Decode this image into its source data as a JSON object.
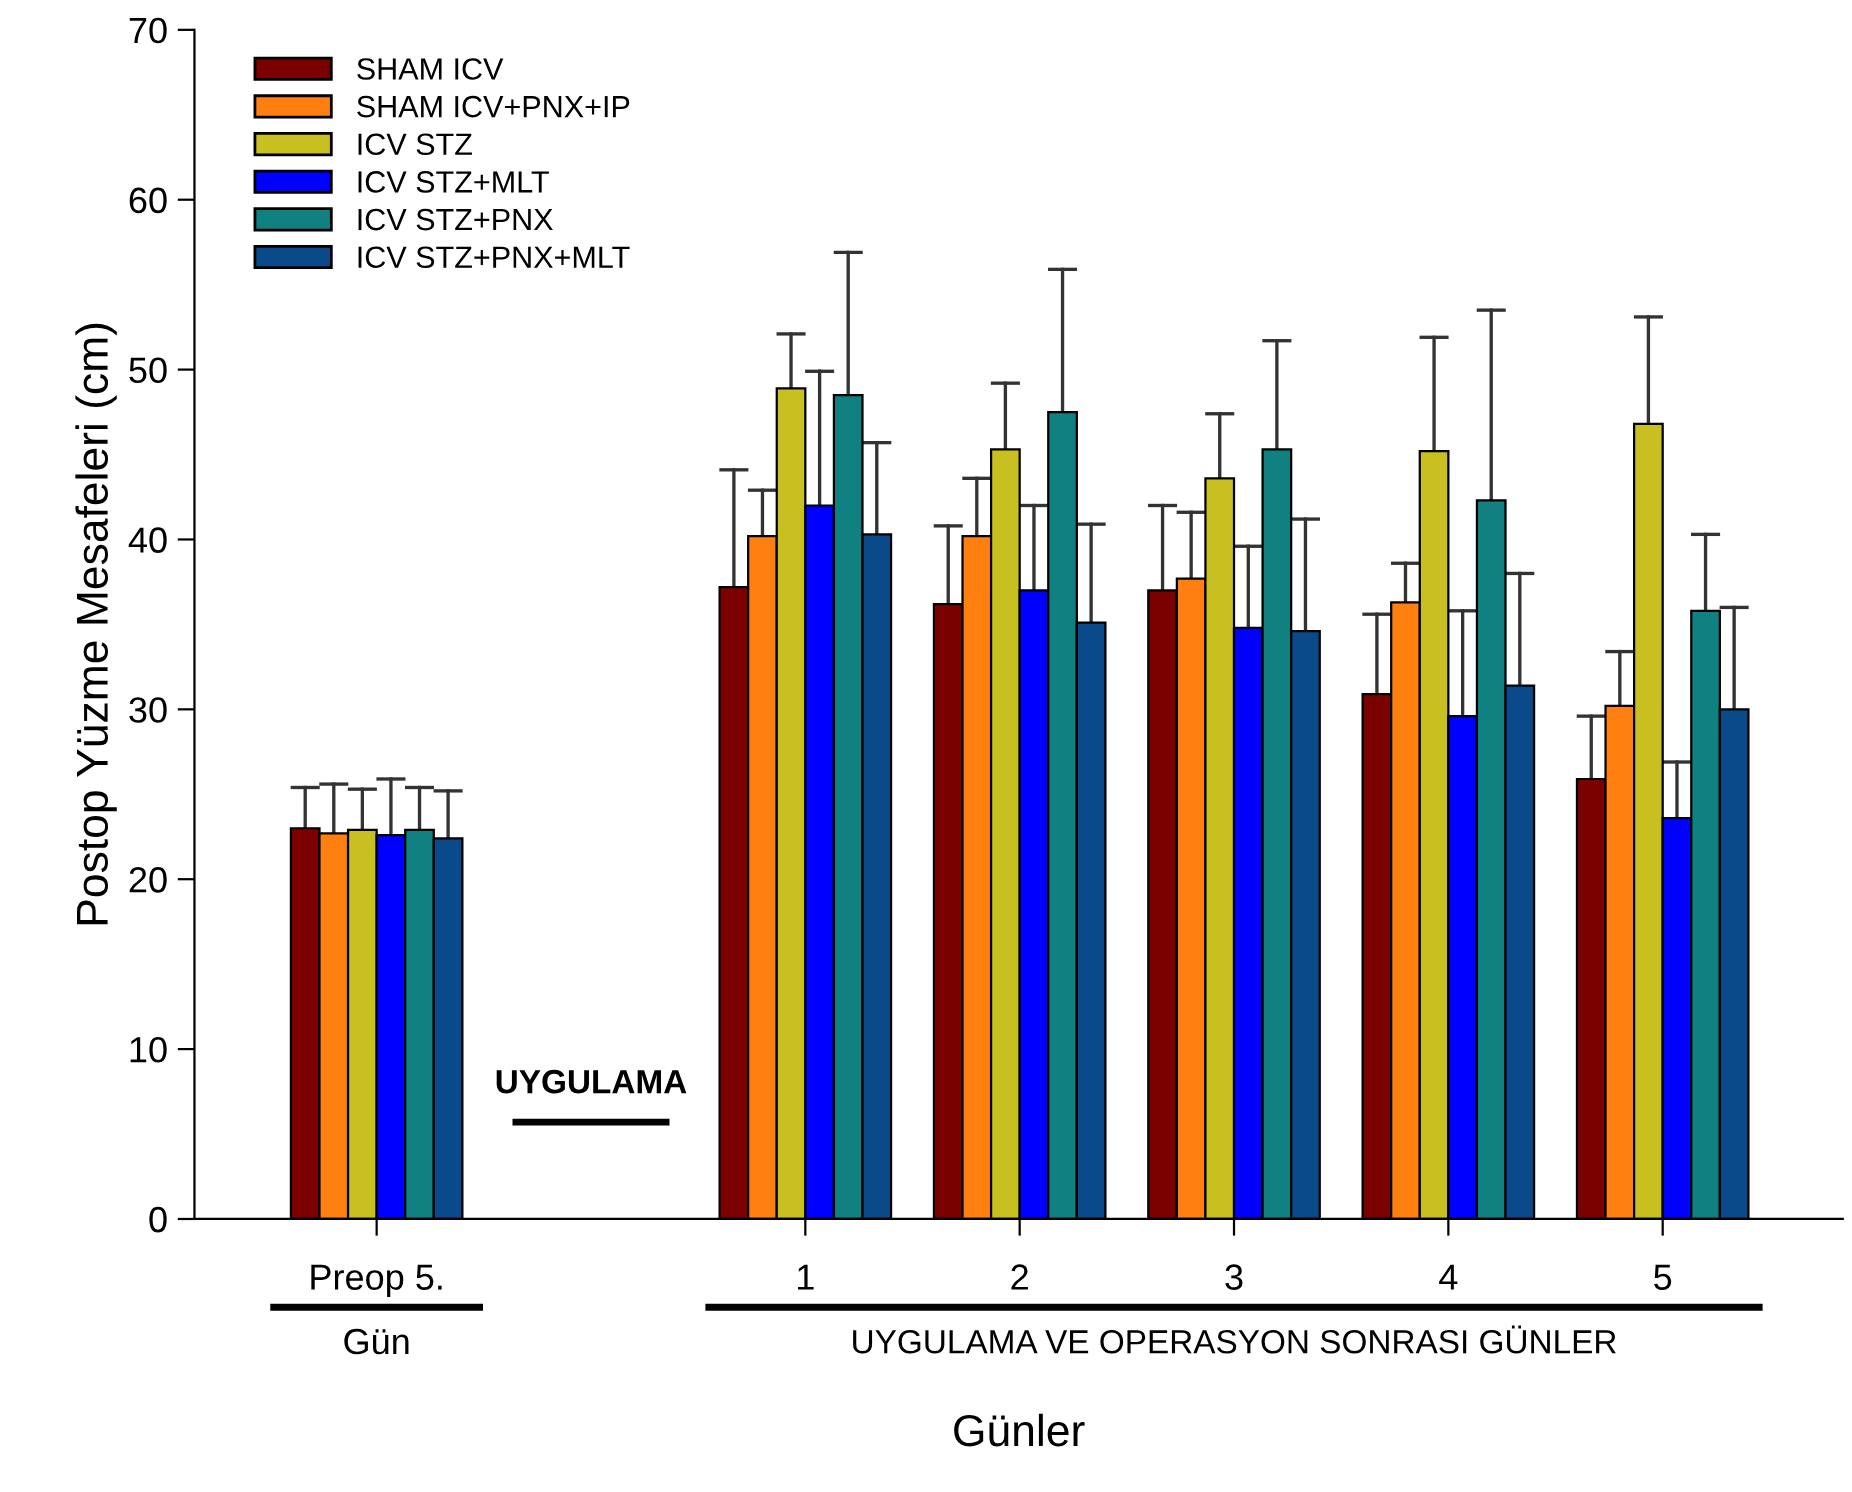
{
  "chart_data": {
    "type": "bar",
    "xlabel": "Günler",
    "ylabel": "Postop Yüzme Mesafeleri (cm)",
    "categories": [
      "Preop 5.",
      null,
      "1",
      "2",
      "3",
      "4",
      "5"
    ],
    "series": [
      {
        "name": "SHAM ICV",
        "color": "#7b0000",
        "values": [
          23.0,
          null,
          37.2,
          36.2,
          37.0,
          30.9,
          25.9
        ],
        "errors": [
          [
            23.0,
            25.4
          ],
          null,
          [
            37.2,
            44.1
          ],
          [
            36.2,
            40.8
          ],
          [
            37.0,
            42.0
          ],
          [
            30.9,
            35.6
          ],
          [
            25.9,
            29.6
          ]
        ]
      },
      {
        "name": "SHAM ICV+PNX+IP",
        "color": "#ff8010",
        "values": [
          22.7,
          null,
          40.2,
          40.2,
          37.7,
          36.3,
          30.2
        ],
        "errors": [
          [
            22.7,
            25.6
          ],
          null,
          [
            40.2,
            42.9
          ],
          [
            40.2,
            43.6
          ],
          [
            37.7,
            41.6
          ],
          [
            36.3,
            38.6
          ],
          [
            30.2,
            33.4
          ]
        ]
      },
      {
        "name": "ICV STZ",
        "color": "#c8c020",
        "values": [
          22.9,
          null,
          48.9,
          45.3,
          43.6,
          45.2,
          46.8
        ],
        "errors": [
          [
            22.9,
            25.3
          ],
          null,
          [
            48.9,
            52.1
          ],
          [
            45.3,
            49.2
          ],
          [
            43.6,
            47.4
          ],
          [
            45.2,
            51.9
          ],
          [
            46.8,
            53.1
          ]
        ]
      },
      {
        "name": "ICV STZ+MLT",
        "color": "#0000ff",
        "values": [
          22.6,
          null,
          42.0,
          37.0,
          34.8,
          29.6,
          23.6
        ],
        "errors": [
          [
            22.6,
            25.9
          ],
          null,
          [
            42.0,
            49.9
          ],
          [
            37.0,
            42.0
          ],
          [
            34.8,
            39.6
          ],
          [
            29.6,
            35.8
          ],
          [
            23.6,
            26.9
          ]
        ]
      },
      {
        "name": "ICV STZ+PNX",
        "color": "#108080",
        "values": [
          22.9,
          null,
          48.5,
          47.5,
          45.3,
          42.3,
          35.8
        ],
        "errors": [
          [
            22.9,
            25.4
          ],
          null,
          [
            48.5,
            56.9
          ],
          [
            47.5,
            55.9
          ],
          [
            45.3,
            51.7
          ],
          [
            42.3,
            53.5
          ],
          [
            35.8,
            40.3
          ]
        ]
      },
      {
        "name": "ICV STZ+PNX+MLT",
        "color": "#0a4a8a",
        "values": [
          22.4,
          null,
          40.3,
          35.1,
          34.6,
          31.4,
          30.0
        ],
        "errors": [
          [
            22.4,
            25.2
          ],
          null,
          [
            40.3,
            45.7
          ],
          [
            35.1,
            40.9
          ],
          [
            34.6,
            41.2
          ],
          [
            31.4,
            38.0
          ],
          [
            30.0,
            36.0
          ]
        ]
      }
    ],
    "ylim": [
      0,
      70
    ],
    "yticks": [
      0,
      10,
      20,
      30,
      40,
      50,
      60,
      70
    ],
    "grid": false,
    "legend": "top left",
    "annotations": [
      "UYGULAMA",
      "Gün",
      "UYGULAMA VE OPERASYON SONRASI GÜNLER"
    ]
  }
}
